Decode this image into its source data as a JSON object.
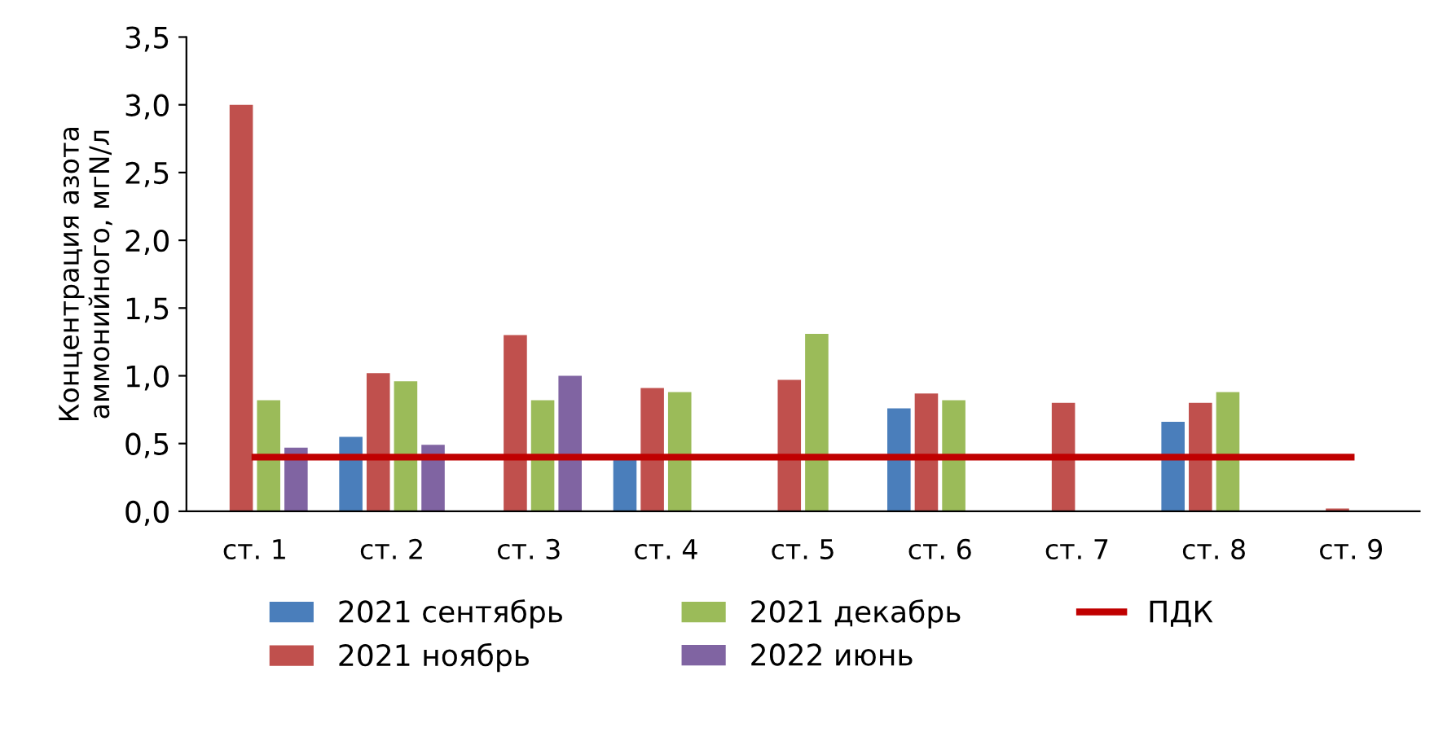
{
  "chart_data": {
    "type": "bar",
    "ylabel": "Концентрация азота\nаммонийного, мгN/л",
    "categories": [
      "ст. 1",
      "ст. 2",
      "ст. 3",
      "ст. 4",
      "ст. 5",
      "ст. 6",
      "ст. 7",
      "ст. 8",
      "ст. 9"
    ],
    "series": [
      {
        "name": "2021 сентябрь",
        "color": "#4a7ebb",
        "values": [
          null,
          0.55,
          null,
          0.4,
          null,
          0.76,
          null,
          0.66,
          null
        ]
      },
      {
        "name": "2021 ноябрь",
        "color": "#c0504d",
        "values": [
          3.0,
          1.02,
          1.3,
          0.91,
          0.97,
          0.87,
          0.8,
          0.8,
          0.02
        ]
      },
      {
        "name": "2021 декабрь",
        "color": "#9bbb59",
        "values": [
          0.82,
          0.96,
          0.82,
          0.88,
          1.31,
          0.82,
          null,
          0.88,
          null
        ]
      },
      {
        "name": "2022 июнь",
        "color": "#8064a2",
        "values": [
          0.47,
          0.49,
          1.0,
          null,
          null,
          null,
          null,
          null,
          null
        ]
      },
      {
        "name": "ПДК",
        "type": "line",
        "color": "#c00000",
        "values": [
          0.4,
          0.4,
          0.4,
          0.4,
          0.4,
          0.4,
          0.4,
          0.4,
          0.4
        ]
      }
    ],
    "ylim": [
      0,
      3.5
    ],
    "yticks": [
      {
        "value": 0,
        "label": "0,0"
      },
      {
        "value": 0.5,
        "label": "0,5"
      },
      {
        "value": 1,
        "label": "1,0"
      },
      {
        "value": 1.5,
        "label": "1,5"
      },
      {
        "value": 2,
        "label": "2,0"
      },
      {
        "value": 2.5,
        "label": "2,5"
      },
      {
        "value": 3,
        "label": "3,0"
      },
      {
        "value": 3.5,
        "label": "3,5"
      }
    ],
    "grid": false,
    "legend": "bottom"
  }
}
